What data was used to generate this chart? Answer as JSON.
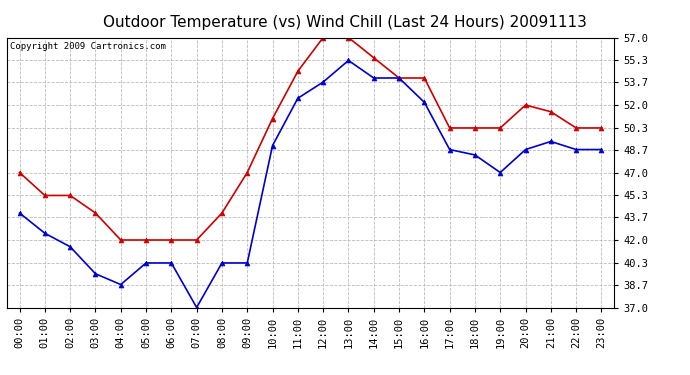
{
  "title": "Outdoor Temperature (vs) Wind Chill (Last 24 Hours) 20091113",
  "copyright": "Copyright 2009 Cartronics.com",
  "x_labels": [
    "00:00",
    "01:00",
    "02:00",
    "03:00",
    "04:00",
    "05:00",
    "06:00",
    "07:00",
    "08:00",
    "09:00",
    "10:00",
    "11:00",
    "12:00",
    "13:00",
    "14:00",
    "15:00",
    "16:00",
    "17:00",
    "18:00",
    "19:00",
    "20:00",
    "21:00",
    "22:00",
    "23:00"
  ],
  "red_values": [
    47.0,
    45.3,
    45.3,
    44.0,
    42.0,
    42.0,
    42.0,
    42.0,
    44.0,
    47.0,
    51.0,
    54.5,
    57.0,
    57.0,
    55.5,
    54.0,
    54.0,
    50.3,
    50.3,
    50.3,
    52.0,
    51.5,
    50.3,
    50.3
  ],
  "blue_values": [
    44.0,
    42.5,
    41.5,
    39.5,
    38.7,
    40.3,
    40.3,
    37.0,
    40.3,
    40.3,
    49.0,
    52.5,
    53.7,
    55.3,
    54.0,
    54.0,
    52.2,
    48.7,
    48.3,
    47.0,
    48.7,
    49.3,
    48.7,
    48.7
  ],
  "ylim": [
    37.0,
    57.0
  ],
  "yticks": [
    37.0,
    38.7,
    40.3,
    42.0,
    43.7,
    45.3,
    47.0,
    48.7,
    50.3,
    52.0,
    53.7,
    55.3,
    57.0
  ],
  "red_color": "#cc0000",
  "blue_color": "#0000cc",
  "bg_color": "#ffffff",
  "plot_bg_color": "#ffffff",
  "grid_color": "#bbbbbb",
  "title_fontsize": 11,
  "tick_fontsize": 7.5,
  "copyright_fontsize": 6.5
}
